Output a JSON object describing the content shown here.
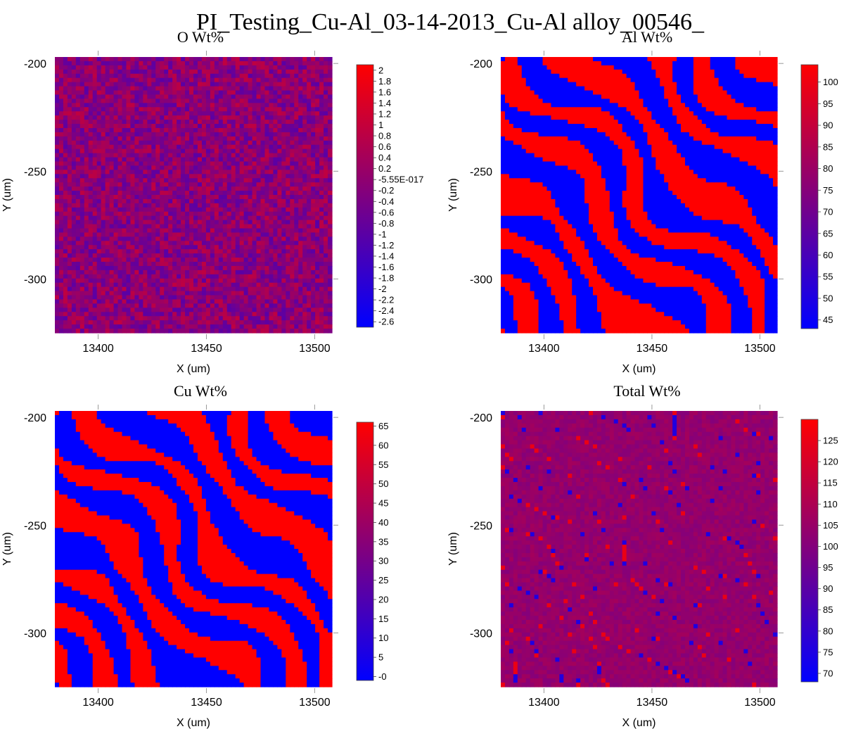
{
  "title": "PI_Testing_Cu-Al_03-14-2013_Cu-Al alloy_00546_",
  "palette": {
    "low": "#0000ff",
    "high": "#ff0000"
  },
  "chart_data": [
    {
      "type": "heatmap",
      "title": "O Wt%",
      "xlabel": "X (um)",
      "ylabel": "Y (um)",
      "xlim": [
        13380,
        13508
      ],
      "ylim": [
        -325,
        -197
      ],
      "xticks": [
        "13400",
        "13450",
        "13500"
      ],
      "yticks": [
        "-200",
        "-250",
        "-300"
      ],
      "pattern": "noise",
      "colorbar": {
        "range": [
          -2.7,
          2.1
        ],
        "ticks": [
          "2",
          "1.8",
          "1.6",
          "1.4",
          "1.2",
          "1",
          "0.8",
          "0.6",
          "0.4",
          "0.2",
          "-5.55E-017",
          "-0.2",
          "-0.4",
          "-0.6",
          "-0.8",
          "-1",
          "-1.2",
          "-1.4",
          "-1.6",
          "-1.8",
          "-2",
          "-2.2",
          "-2.4",
          "-2.6"
        ]
      }
    },
    {
      "type": "heatmap",
      "title": "Al Wt%",
      "xlabel": "X (um)",
      "ylabel": "Y (um)",
      "xlim": [
        13380,
        13508
      ],
      "ylim": [
        -325,
        -197
      ],
      "xticks": [
        "13400",
        "13450",
        "13500"
      ],
      "yticks": [
        "-200",
        "-250",
        "-300"
      ],
      "pattern": "stripes",
      "colorbar": {
        "range": [
          43,
          104
        ],
        "ticks": [
          "100",
          "95",
          "90",
          "85",
          "80",
          "75",
          "70",
          "65",
          "60",
          "55",
          "50",
          "45"
        ]
      }
    },
    {
      "type": "heatmap",
      "title": "Cu Wt%",
      "xlabel": "X (um)",
      "ylabel": "Y (um)",
      "xlim": [
        13380,
        13508
      ],
      "ylim": [
        -325,
        -197
      ],
      "xticks": [
        "13400",
        "13450",
        "13500"
      ],
      "yticks": [
        "-200",
        "-250",
        "-300"
      ],
      "pattern": "stripes-inverted",
      "colorbar": {
        "range": [
          -1,
          66
        ],
        "ticks": [
          "65",
          "60",
          "55",
          "50",
          "45",
          "40",
          "35",
          "30",
          "25",
          "20",
          "15",
          "10",
          "5",
          "-0"
        ]
      }
    },
    {
      "type": "heatmap",
      "title": "Total Wt%",
      "xlabel": "X (um)",
      "ylabel": "Y (um)",
      "xlim": [
        13380,
        13508
      ],
      "ylim": [
        -325,
        -197
      ],
      "xticks": [
        "13400",
        "13450",
        "13500"
      ],
      "yticks": [
        "-200",
        "-250",
        "-300"
      ],
      "pattern": "edges",
      "colorbar": {
        "range": [
          68,
          130
        ],
        "ticks": [
          "125",
          "120",
          "115",
          "110",
          "105",
          "100",
          "95",
          "90",
          "85",
          "80",
          "75",
          "70"
        ]
      }
    }
  ]
}
